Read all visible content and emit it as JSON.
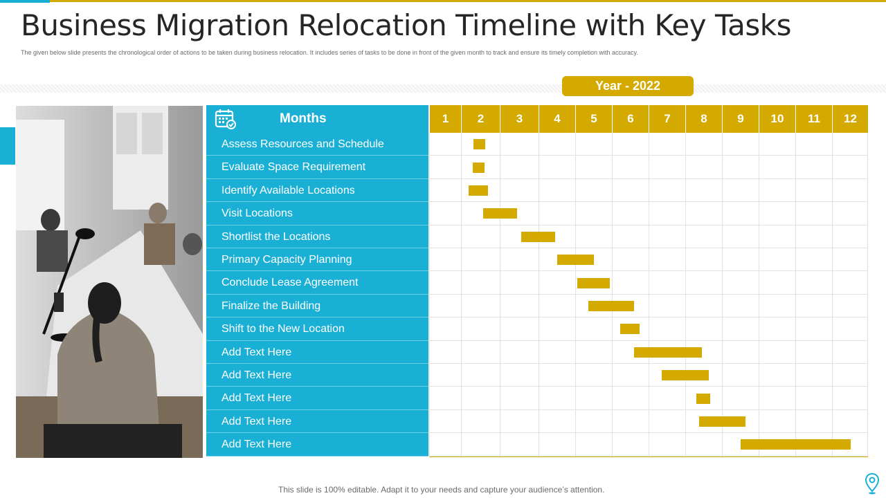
{
  "slide": {
    "title": "Business Migration Relocation Timeline with Key Tasks",
    "subtitle": "The given below slide presents the chronological order of actions to be taken  during business relocation. It includes series of tasks to be done in  front of the given month  to track and ensure its timely  completion  with accuracy.",
    "footer": "This slide is 100% editable. Adapt it to your needs and capture your audience’s attention."
  },
  "timeline": {
    "year_label": "Year - 2022",
    "months_label": "Months",
    "months": [
      "1",
      "2",
      "3",
      "4",
      "5",
      "6",
      "7",
      "8",
      "9",
      "10",
      "11",
      "12"
    ],
    "tasks": [
      {
        "label": "Assess Resources and Schedule",
        "start": 2.32,
        "end": 2.62
      },
      {
        "label": "Evaluate Space Requirement",
        "start": 2.3,
        "end": 2.6
      },
      {
        "label": "Identify Available Locations",
        "start": 2.2,
        "end": 2.7
      },
      {
        "label": "Visit Locations",
        "start": 2.58,
        "end": 3.45
      },
      {
        "label": "Shortlist the Locations",
        "start": 3.55,
        "end": 4.45
      },
      {
        "label": "Primary Capacity Planning",
        "start": 4.5,
        "end": 5.5
      },
      {
        "label": "Conclude Lease Agreement",
        "start": 5.05,
        "end": 5.95
      },
      {
        "label": "Finalize the Building",
        "start": 5.35,
        "end": 6.6
      },
      {
        "label": "Shift to the New Location",
        "start": 6.22,
        "end": 6.75
      },
      {
        "label": "Add Text Here",
        "start": 6.6,
        "end": 8.45
      },
      {
        "label": "Add Text Here",
        "start": 7.35,
        "end": 8.65
      },
      {
        "label": "Add Text Here",
        "start": 8.3,
        "end": 8.67
      },
      {
        "label": "Add Text Here",
        "start": 8.38,
        "end": 9.65
      },
      {
        "label": "Add Text Here",
        "start": 9.5,
        "end": 12.52
      }
    ]
  },
  "colors": {
    "accent_blue": "#1ab0d6",
    "accent_gold": "#d4aa00"
  },
  "icons": {
    "calendar": "calendar-check-icon",
    "location": "location-pin-icon"
  }
}
